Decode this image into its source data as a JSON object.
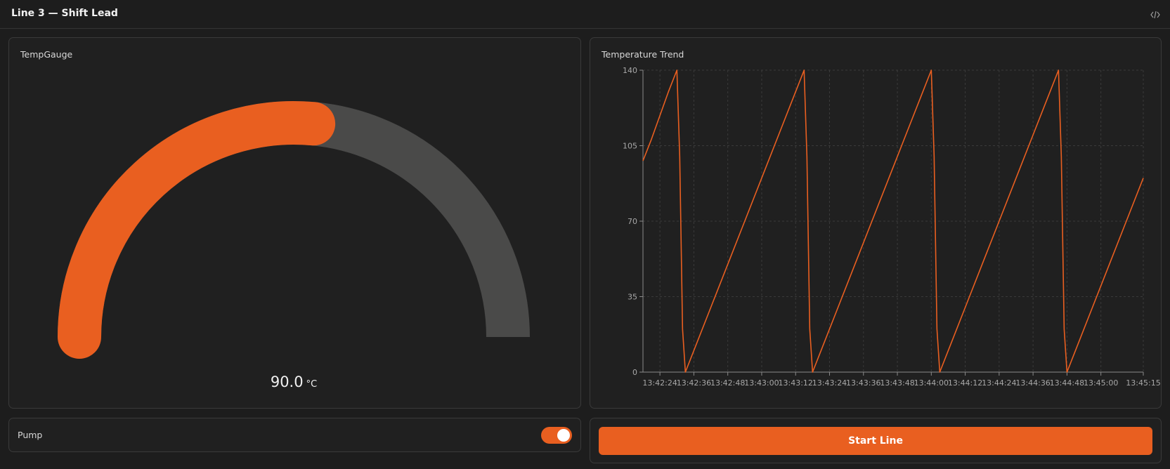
{
  "header": {
    "title": "Line 3 — Shift Lead"
  },
  "gauge": {
    "title": "TempGauge",
    "value": 90,
    "value_label": "90.0",
    "unit": "°C",
    "min": 0,
    "max": 170,
    "color": "#e95f20",
    "track_color": "#4a4a49"
  },
  "chart_data": {
    "type": "line",
    "title": "Temperature Trend",
    "x": [
      "13:42:18",
      "13:42:21",
      "13:42:24",
      "13:42:27",
      "13:42:30",
      "13:42:31",
      "13:42:32",
      "13:42:33",
      "13:42:36",
      "13:42:42",
      "13:42:48",
      "13:42:54",
      "13:43:00",
      "13:43:06",
      "13:43:12",
      "13:43:15",
      "13:43:16",
      "13:43:17",
      "13:43:18",
      "13:43:21",
      "13:43:27",
      "13:43:33",
      "13:43:39",
      "13:43:45",
      "13:43:51",
      "13:43:57",
      "13:44:00",
      "13:44:01",
      "13:44:02",
      "13:44:03",
      "13:44:06",
      "13:44:12",
      "13:44:18",
      "13:44:24",
      "13:44:30",
      "13:44:36",
      "13:44:42",
      "13:44:45",
      "13:44:46",
      "13:44:47",
      "13:44:48",
      "13:44:51",
      "13:44:57",
      "13:45:03",
      "13:45:09",
      "13:45:15"
    ],
    "values": [
      98,
      108,
      119,
      130,
      140,
      100,
      20,
      0,
      10,
      30,
      50,
      70,
      90,
      110,
      130,
      140,
      100,
      20,
      0,
      10,
      30,
      50,
      70,
      90,
      110,
      130,
      140,
      100,
      20,
      0,
      10,
      30,
      50,
      70,
      90,
      110,
      130,
      140,
      100,
      20,
      0,
      10,
      30,
      50,
      70,
      90
    ],
    "color": "#e95f20",
    "xlim": [
      "13:42:18",
      "13:45:15"
    ],
    "xticks": [
      "13:42:24",
      "13:42:36",
      "13:42:48",
      "13:43:00",
      "13:43:12",
      "13:43:24",
      "13:43:36",
      "13:43:48",
      "13:44:00",
      "13:44:12",
      "13:44:24",
      "13:44:36",
      "13:44:48",
      "13:45:00",
      "13:45:15"
    ],
    "ylim": [
      0,
      140
    ],
    "yticks": [
      0,
      35,
      70,
      105,
      140
    ],
    "grid": true
  },
  "pump": {
    "label": "Pump",
    "on": true
  },
  "button": {
    "label": "Start Line"
  }
}
